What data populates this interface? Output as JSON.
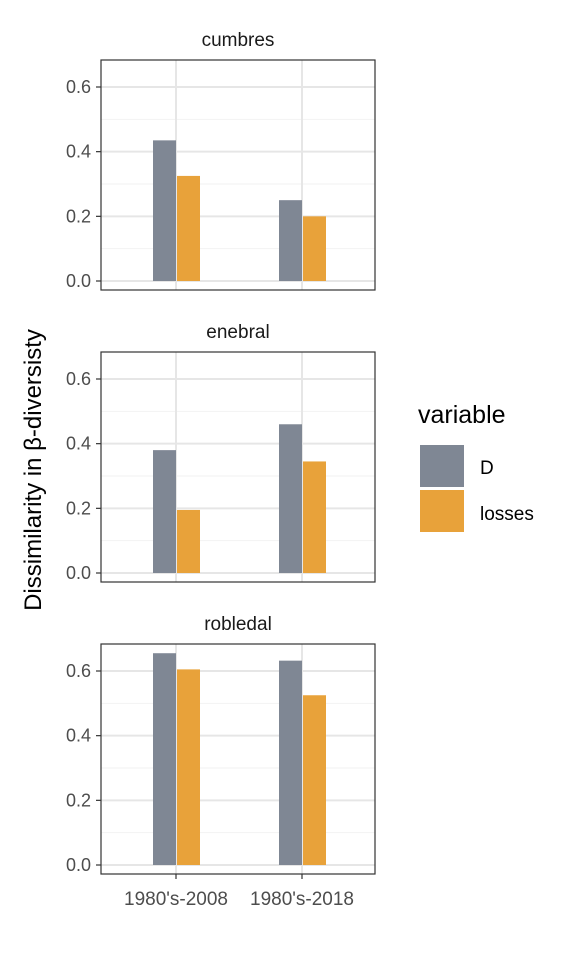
{
  "chart_data": {
    "type": "bar",
    "ylabel": "Dissimilarity in β-diversisty",
    "ylim": [
      0,
      0.68
    ],
    "yticks": [
      "0.0",
      "0.2",
      "0.4",
      "0.6"
    ],
    "categories": [
      "1980's-2008",
      "1980's-2018"
    ],
    "grid": true,
    "legend": {
      "title": "variable",
      "position": "right",
      "entries": [
        {
          "name": "D",
          "color": "#7f8794"
        },
        {
          "name": "losses",
          "color": "#e8a23a"
        }
      ]
    },
    "panels": [
      {
        "title": "cumbres",
        "series": [
          {
            "name": "D",
            "values": [
              0.435,
              0.25
            ]
          },
          {
            "name": "losses",
            "values": [
              0.325,
              0.2
            ]
          }
        ]
      },
      {
        "title": "enebral",
        "series": [
          {
            "name": "D",
            "values": [
              0.38,
              0.46
            ]
          },
          {
            "name": "losses",
            "values": [
              0.195,
              0.345
            ]
          }
        ]
      },
      {
        "title": "robledal",
        "series": [
          {
            "name": "D",
            "values": [
              0.655,
              0.632
            ]
          },
          {
            "name": "losses",
            "values": [
              0.605,
              0.525
            ]
          }
        ]
      }
    ]
  }
}
